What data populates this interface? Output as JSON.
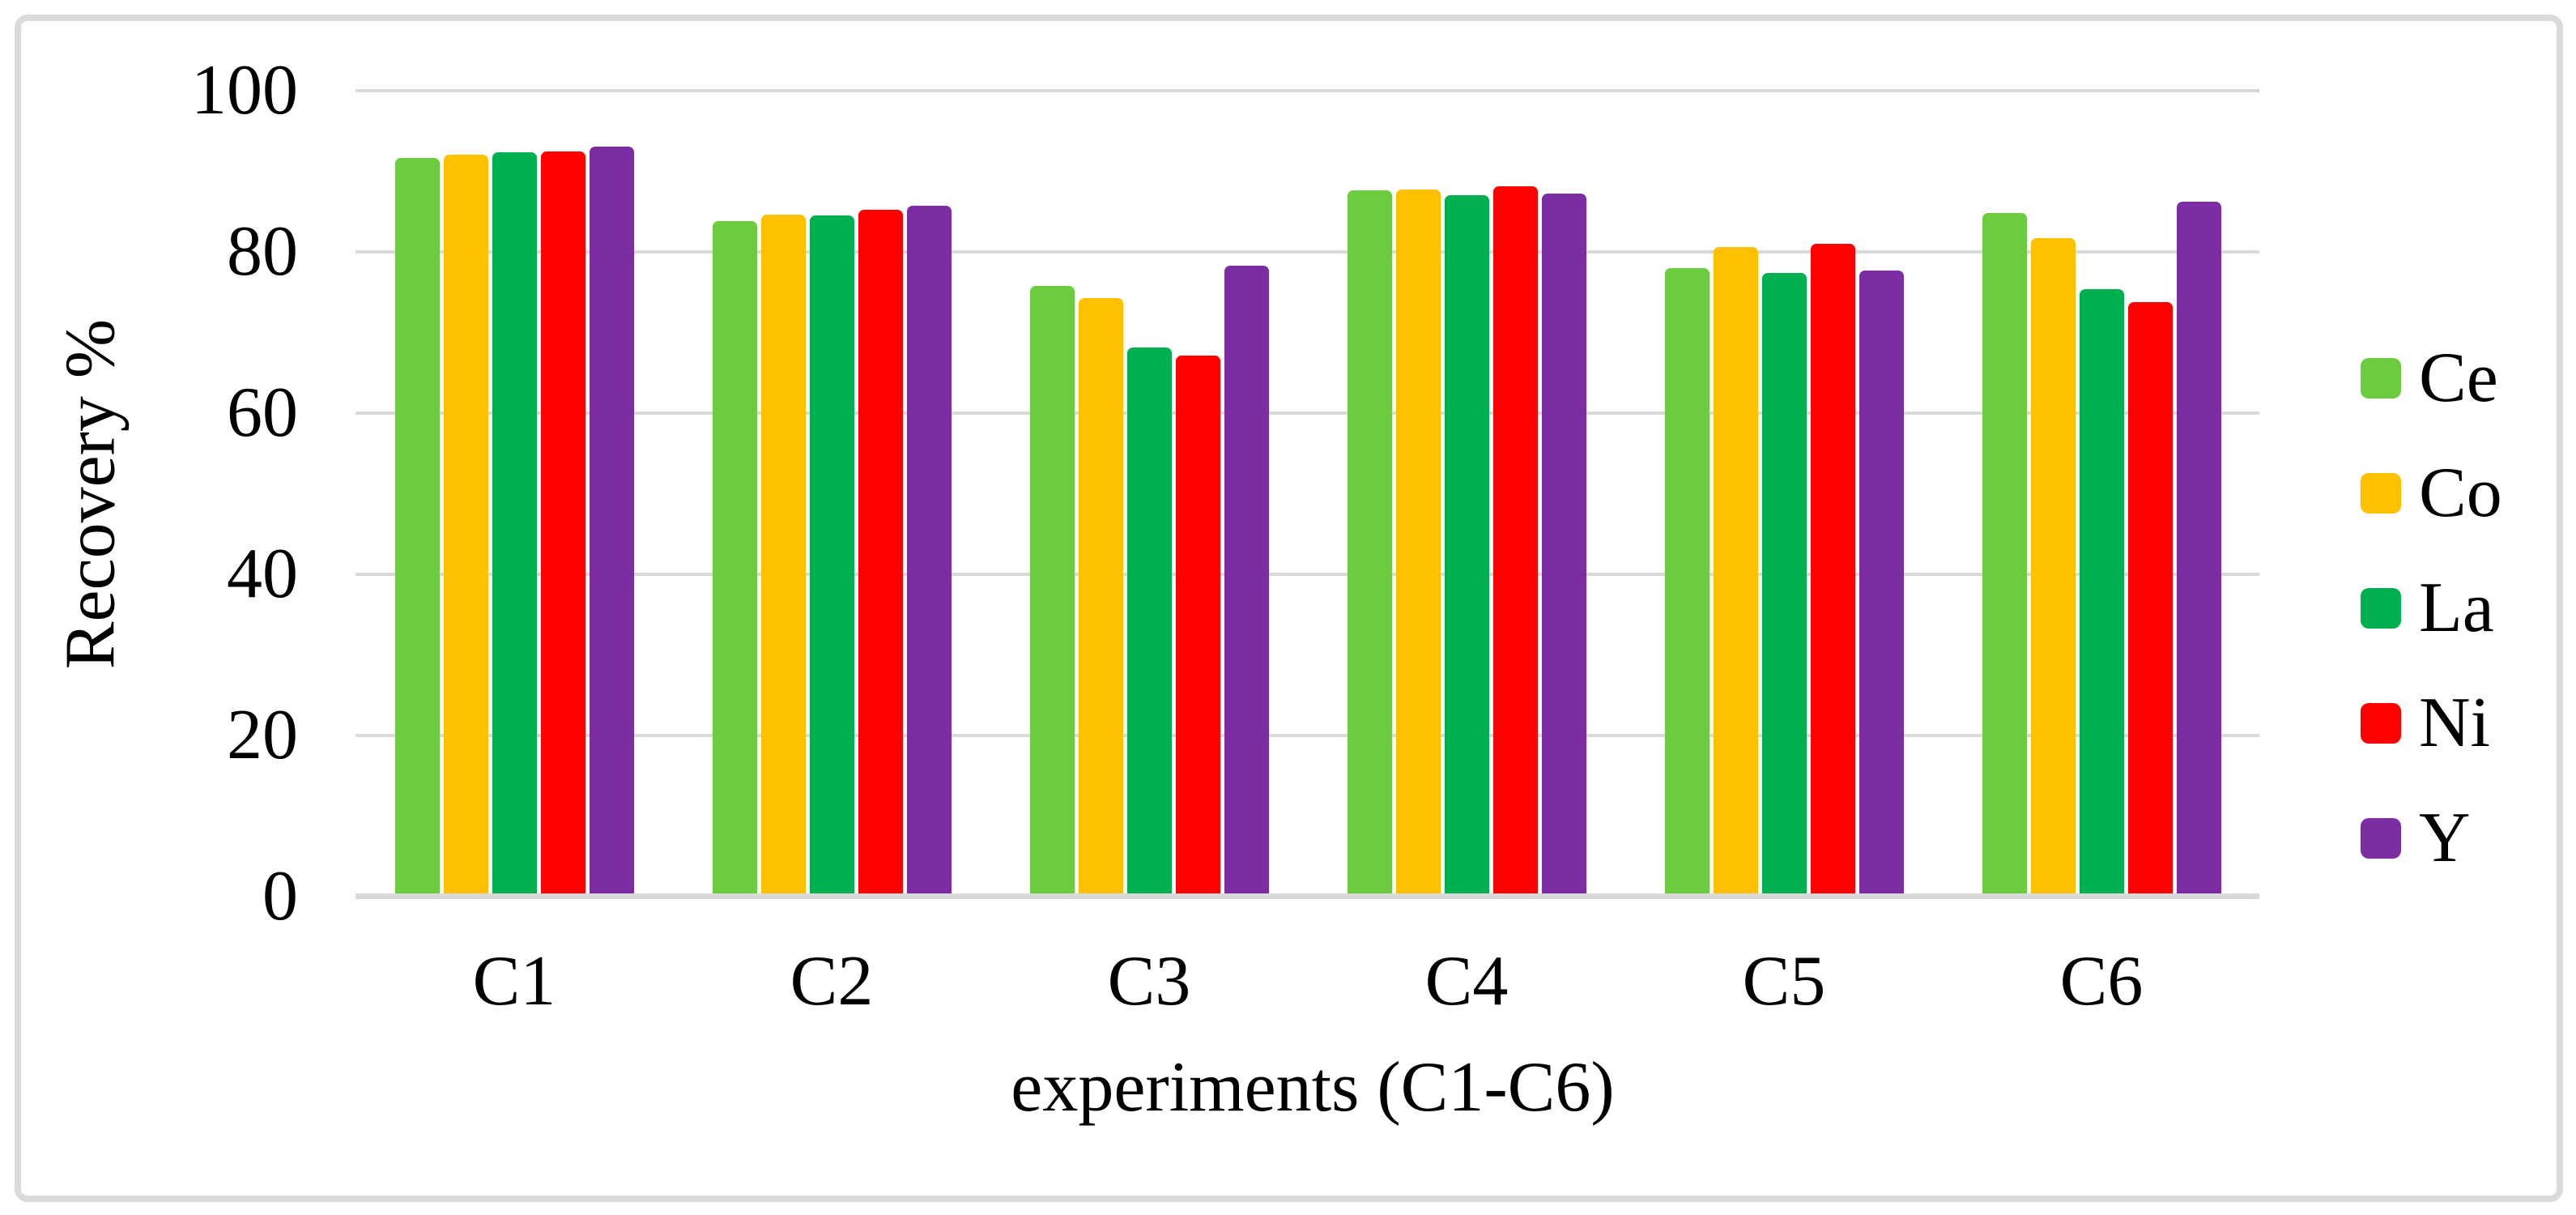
{
  "chart_data": {
    "type": "bar",
    "title": "",
    "xlabel": "experiments (C1-C6)",
    "ylabel": "Recovery %",
    "categories": [
      "C1",
      "C2",
      "C3",
      "C4",
      "C5",
      "C6"
    ],
    "series": [
      {
        "name": "Ce",
        "color": "#6ccc40",
        "values": [
          91.7,
          83.8,
          75.8,
          87.6,
          78.0,
          84.8
        ]
      },
      {
        "name": "Co",
        "color": "#ffc000",
        "values": [
          92.1,
          84.6,
          74.3,
          87.7,
          80.6,
          81.7
        ]
      },
      {
        "name": "La",
        "color": "#00b050",
        "values": [
          92.4,
          84.5,
          68.1,
          87.0,
          77.4,
          75.4
        ]
      },
      {
        "name": "Ni",
        "color": "#ff0000",
        "values": [
          92.5,
          85.2,
          67.1,
          88.1,
          81.0,
          73.8
        ]
      },
      {
        "name": "Y",
        "color": "#7c2da4",
        "values": [
          93.1,
          85.7,
          78.3,
          87.2,
          77.7,
          86.2
        ]
      }
    ],
    "ylim": [
      0,
      100
    ],
    "yticks": [
      0,
      20,
      40,
      60,
      80,
      100
    ],
    "grid": "horizontal",
    "gridline_color": "#d9d9d9",
    "axis_line_color": "#d9d9d9",
    "frame_border_color": "#dbdbdb",
    "legend_position": "right"
  }
}
